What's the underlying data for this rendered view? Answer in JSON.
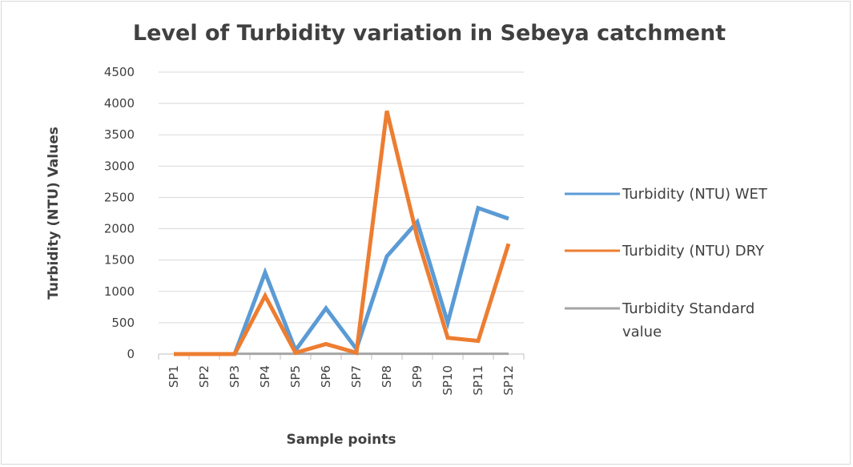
{
  "chart_data": {
    "type": "line",
    "title": "Level of Turbidity variation in Sebeya catchment",
    "xlabel": "Sample points",
    "ylabel": "Turbidity (NTU) Values",
    "ylim": [
      0,
      4500
    ],
    "yticks": [
      0,
      500,
      1000,
      1500,
      2000,
      2500,
      3000,
      3500,
      4000,
      4500
    ],
    "categories": [
      "SP1",
      "SP2",
      "SP3",
      "SP4",
      "SP5",
      "SP6",
      "SP7",
      "SP8",
      "SP9",
      "SP10",
      "SP11",
      "SP12"
    ],
    "grid": true,
    "legend_position": "right",
    "series": [
      {
        "name": "Turbidity (NTU) WET",
        "color": "#5b9bd5",
        "values": [
          0,
          0,
          0,
          1300,
          60,
          730,
          80,
          1560,
          2110,
          500,
          2330,
          2160
        ]
      },
      {
        "name": "Turbidity (NTU) DRY",
        "color": "#ed7d31",
        "values": [
          0,
          0,
          0,
          930,
          20,
          160,
          20,
          3880,
          1860,
          260,
          210,
          1760
        ]
      },
      {
        "name": "Turbidity Standard value",
        "color": "#a5a5a5",
        "values": [
          5,
          5,
          5,
          5,
          5,
          5,
          5,
          5,
          5,
          5,
          5,
          5
        ]
      }
    ]
  }
}
